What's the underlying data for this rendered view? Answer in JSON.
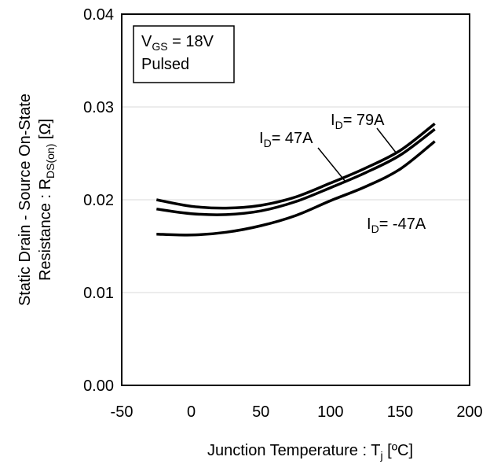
{
  "chart_data": {
    "type": "line",
    "xlabel": {
      "main": "Junction Temperature : T",
      "sub": "j",
      "unit": " [ºC]"
    },
    "ylabel": {
      "line1": "Static Drain - Source On-State",
      "line2_main": "Resistance : R",
      "line2_sub": "DS(on)",
      "line2_unit": " [Ω]"
    },
    "xlim": [
      -50,
      200
    ],
    "ylim": [
      0.0,
      0.04
    ],
    "xticks": [
      "-50",
      "0",
      "50",
      "100",
      "150",
      "200"
    ],
    "yticks": [
      "0.00",
      "0.01",
      "0.02",
      "0.03",
      "0.04"
    ],
    "grid": "horizontal",
    "legend": {
      "line1_main": "V",
      "line1_sub": "GS",
      "line1_rest": " = 18V",
      "line2": "Pulsed",
      "placement": "top-left"
    },
    "series": [
      {
        "label_main": "I",
        "label_sub": "D",
        "label_rest": "= 79A",
        "x": [
          -25,
          0,
          25,
          50,
          75,
          100,
          125,
          150,
          175
        ],
        "y": [
          0.02,
          0.0193,
          0.0191,
          0.0194,
          0.0203,
          0.0218,
          0.0234,
          0.0253,
          0.0282
        ]
      },
      {
        "label_main": "I",
        "label_sub": "D",
        "label_rest": "= 47A",
        "x": [
          -25,
          0,
          25,
          50,
          75,
          100,
          125,
          150,
          175
        ],
        "y": [
          0.019,
          0.0185,
          0.0184,
          0.0188,
          0.0198,
          0.0213,
          0.0229,
          0.0248,
          0.0276
        ]
      },
      {
        "label_main": "I",
        "label_sub": "D",
        "label_rest": "= -47A",
        "x": [
          -25,
          0,
          25,
          50,
          75,
          100,
          125,
          150,
          175
        ],
        "y": [
          0.0163,
          0.0162,
          0.0165,
          0.0172,
          0.0183,
          0.0199,
          0.0214,
          0.0233,
          0.0263
        ]
      }
    ]
  }
}
